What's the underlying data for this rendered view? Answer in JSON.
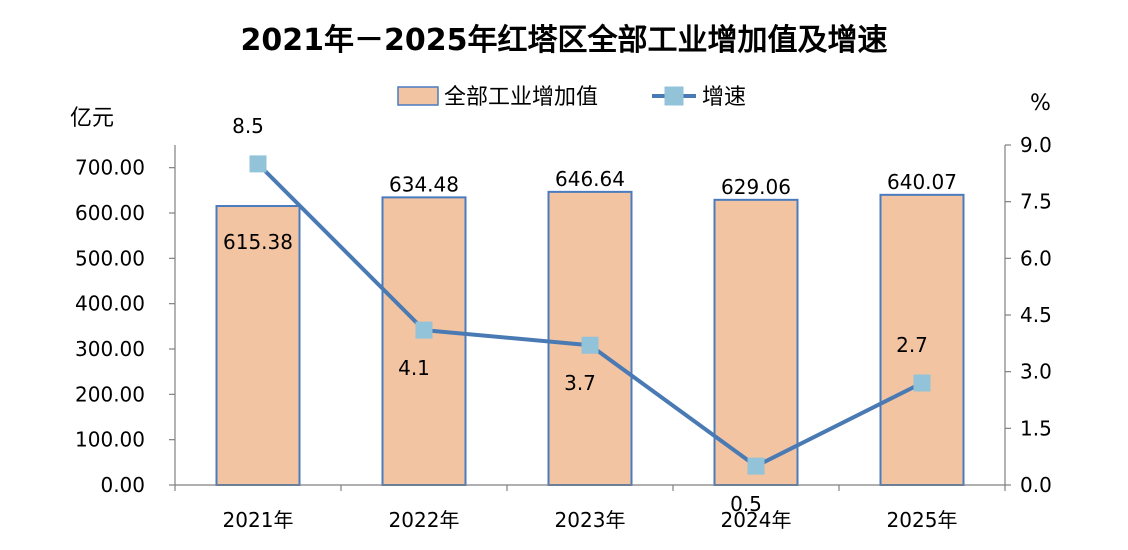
{
  "chart_data": {
    "type": "bar",
    "title": "2021年－2025年红塔区全部工业增加值及增速",
    "categories": [
      "2021年",
      "2022年",
      "2023年",
      "2024年",
      "2025年"
    ],
    "series": [
      {
        "name": "全部工业增加值",
        "type": "bar",
        "axis": "left",
        "values": [
          615.38,
          634.48,
          646.64,
          629.06,
          640.07
        ],
        "labels": [
          "615.38",
          "634.48",
          "646.64",
          "629.06",
          "640.07"
        ]
      },
      {
        "name": "增速",
        "type": "line",
        "axis": "right",
        "values": [
          8.5,
          4.1,
          3.7,
          0.5,
          2.7
        ],
        "labels": [
          "8.5",
          "4.1",
          "3.7",
          "0.5",
          "2.7"
        ]
      }
    ],
    "y_left": {
      "unit": "亿元",
      "ylim": [
        0,
        750
      ],
      "ticks": [
        "0.00",
        "100.00",
        "200.00",
        "300.00",
        "400.00",
        "500.00",
        "600.00",
        "700.00"
      ],
      "tick_values": [
        0,
        100,
        200,
        300,
        400,
        500,
        600,
        700
      ]
    },
    "y_right": {
      "unit": "%",
      "ylim": [
        0,
        9
      ],
      "ticks": [
        "0.0",
        "1.5",
        "3.0",
        "4.5",
        "6.0",
        "7.5",
        "9.0"
      ],
      "tick_values": [
        0,
        1.5,
        3,
        4.5,
        6,
        7.5,
        9
      ]
    },
    "legend": "top-center",
    "grid": false,
    "colors": {
      "bar_fill": "#f3c4a1",
      "bar_stroke": "#4a7bbf",
      "line": "#4a7ab4",
      "marker": "#92c3d8",
      "axis": "#808080"
    }
  }
}
